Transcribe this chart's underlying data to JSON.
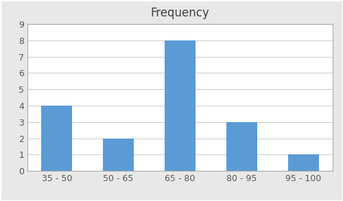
{
  "categories": [
    "35 - 50",
    "50 - 65",
    "65 - 80",
    "80 - 95",
    "95 - 100"
  ],
  "values": [
    4,
    2,
    8,
    3,
    1
  ],
  "bar_color": "#5B9BD5",
  "title": "Frequency",
  "title_fontsize": 12,
  "ylim": [
    0,
    9
  ],
  "yticks": [
    0,
    1,
    2,
    3,
    4,
    5,
    6,
    7,
    8,
    9
  ],
  "fig_bg_color": "#e8e8e8",
  "plot_bg_color": "#ffffff",
  "grid_color": "#d0d0d0",
  "tick_fontsize": 9,
  "bar_width": 0.5,
  "edge_color": "none",
  "border_color": "#aaaaaa",
  "title_color": "#404040",
  "tick_color": "#555555"
}
